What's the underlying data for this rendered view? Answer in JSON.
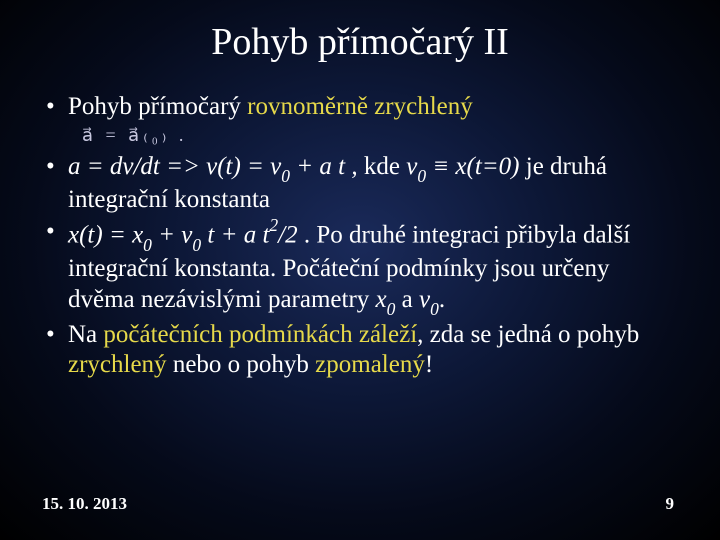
{
  "slide": {
    "title": "Pohyb přímočarý II",
    "bullets": [
      {
        "segments": [
          {
            "text": "Pohyb přímočarý ",
            "class": ""
          },
          {
            "text": "rovnoměrně zrychlený",
            "class": "yellow"
          }
        ],
        "equation": "a⃗ = a⃗₍₀₎  ."
      },
      {
        "segments": [
          {
            "text": "a = dv/dt => v(t) = v",
            "class": "italic"
          },
          {
            "text": "0",
            "class": "italic sub"
          },
          {
            "text": " + a t ,",
            "class": "italic"
          },
          {
            "text": " kde  ",
            "class": ""
          },
          {
            "text": "v",
            "class": "italic"
          },
          {
            "text": "0",
            "class": "italic sub"
          },
          {
            "text": " ≡ x(t=0)",
            "class": "italic"
          },
          {
            "text": " je druhá integrační konstanta",
            "class": ""
          }
        ]
      },
      {
        "segments": [
          {
            "text": "x(t) = x",
            "class": "italic"
          },
          {
            "text": "0",
            "class": "italic sub"
          },
          {
            "text": " + v",
            "class": "italic"
          },
          {
            "text": "0",
            "class": "italic sub"
          },
          {
            "text": " t + a t",
            "class": "italic"
          },
          {
            "text": "2",
            "class": "italic sup"
          },
          {
            "text": "/2",
            "class": "italic"
          },
          {
            "text": " . Po druhé integraci přibyla další integrační konstanta. Počáteční podmínky jsou určeny dvěma nezávislými parametry ",
            "class": ""
          },
          {
            "text": "x",
            "class": "italic"
          },
          {
            "text": "0",
            "class": "italic sub"
          },
          {
            "text": " a ",
            "class": ""
          },
          {
            "text": "v",
            "class": "italic"
          },
          {
            "text": "0",
            "class": "italic sub"
          },
          {
            "text": ".",
            "class": ""
          }
        ]
      },
      {
        "segments": [
          {
            "text": "Na ",
            "class": ""
          },
          {
            "text": "počátečních podmínkách záleží",
            "class": "yellow"
          },
          {
            "text": ", zda se jedná o pohyb ",
            "class": ""
          },
          {
            "text": "zrychlený",
            "class": "yellow"
          },
          {
            "text": " nebo o pohyb ",
            "class": ""
          },
          {
            "text": "zpomalený",
            "class": "yellow"
          },
          {
            "text": "!",
            "class": ""
          }
        ]
      }
    ],
    "footer": {
      "date": "15. 10. 2013",
      "page": "9"
    }
  },
  "style": {
    "title_fontsize": 38,
    "bullet_fontsize": 25,
    "footer_fontsize": 17,
    "text_color": "#ffffff",
    "highlight_color": "#e6d94a",
    "bg_gradient_inner": "#1a2a5a",
    "bg_gradient_mid": "#0d1838",
    "bg_gradient_outer": "#000000"
  }
}
